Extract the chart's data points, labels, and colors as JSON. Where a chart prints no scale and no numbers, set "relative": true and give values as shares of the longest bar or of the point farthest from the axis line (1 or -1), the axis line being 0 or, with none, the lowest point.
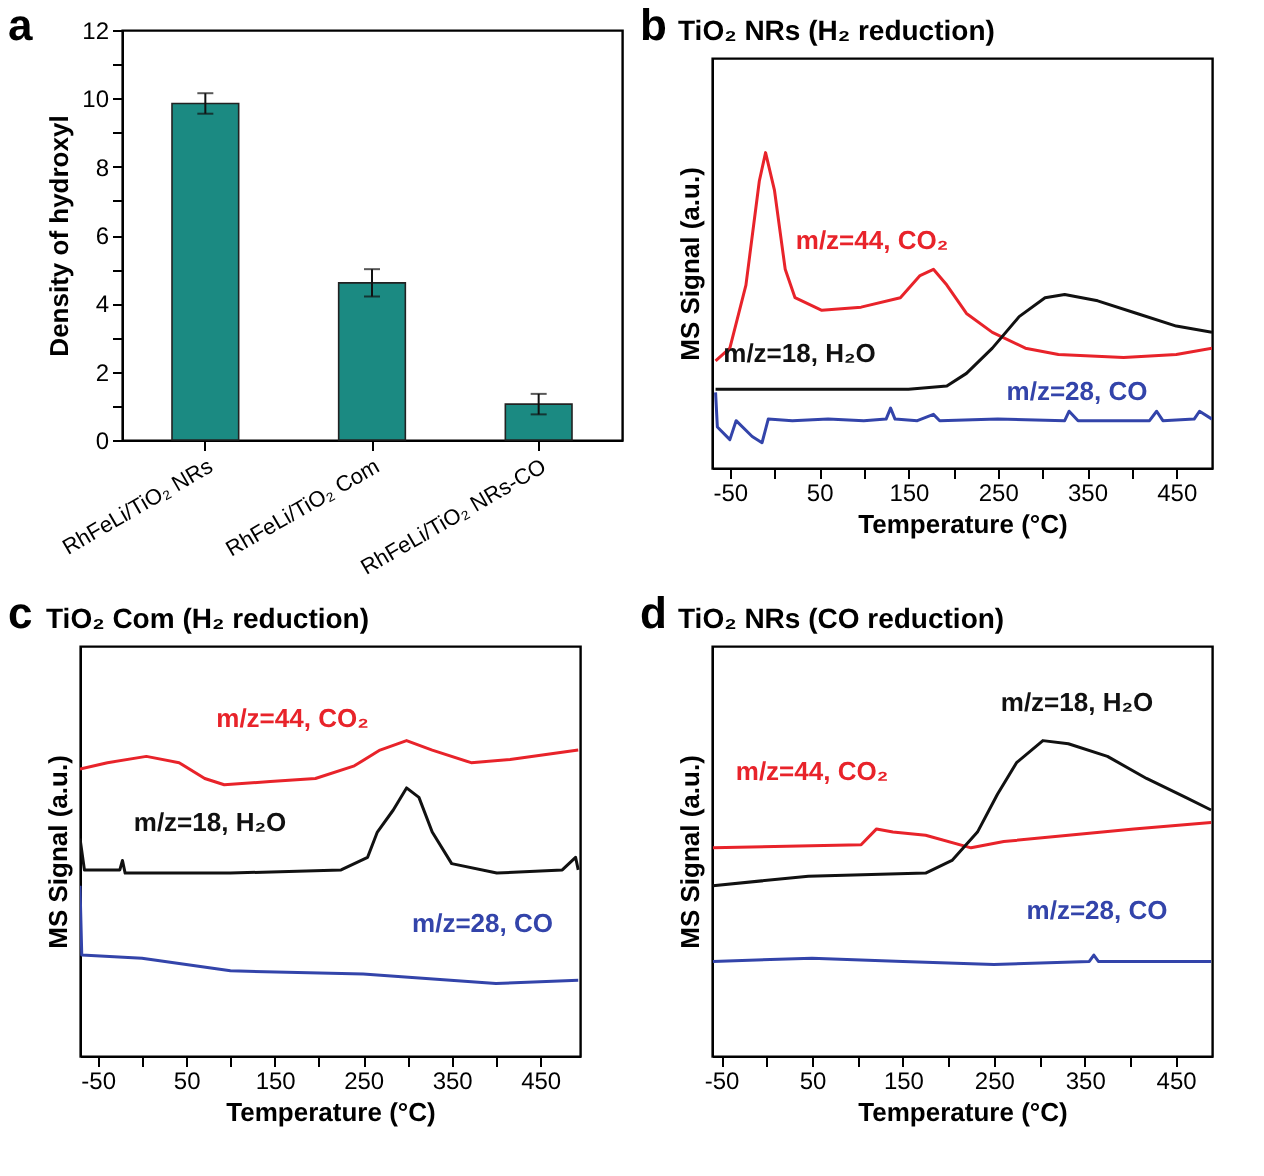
{
  "chart_data": [
    {
      "type": "bar",
      "ylabel": "Density of hydroxyl",
      "annotations": [
        "a"
      ],
      "categories": [
        "RhFeLi/TiO₂ NRs",
        "RhFeLi/TiO₂ Com",
        "RhFeLi/TiO₂ NRs-CO"
      ],
      "values": [
        9.85,
        4.6,
        1.05
      ],
      "errors": [
        0.3,
        0.4,
        0.3
      ],
      "color": "#1b8a82",
      "ylim": [
        0,
        12
      ],
      "yticks": [
        0,
        {
          "value": 1,
          "label": null
        },
        2,
        {
          "value": 3,
          "label": null
        },
        4,
        {
          "value": 5,
          "label": null
        },
        6,
        {
          "value": 7,
          "label": null
        },
        8,
        {
          "value": 9,
          "label": null
        },
        10,
        {
          "value": 11,
          "label": null
        },
        12
      ]
    },
    {
      "type": "line",
      "title": "TiO₂ NRs (H₂ reduction)",
      "xlabel": "Temperature (°C)",
      "ylabel": "MS Signal (a.u.)",
      "relative": true,
      "annotations": [
        "b"
      ],
      "xlim": [
        -70,
        490
      ],
      "xticks": [
        -50,
        {
          "value": 0,
          "label": null
        },
        50,
        {
          "value": 100,
          "label": null
        },
        150,
        {
          "value": 200,
          "label": null
        },
        250,
        {
          "value": 300,
          "label": null
        },
        350,
        {
          "value": 400,
          "label": null
        },
        450
      ],
      "series": [
        {
          "name": "m/z=44, CO₂",
          "color": "#e8232a",
          "x": [
            -66,
            -50,
            -32,
            -17,
            -10,
            0,
            12,
            23,
            53,
            97,
            141,
            163,
            178,
            193,
            215,
            244,
            281,
            318,
            391,
            450,
            490
          ],
          "values": [
            0.34,
            0.38,
            0.58,
            0.91,
            1.0,
            0.88,
            0.63,
            0.54,
            0.5,
            0.51,
            0.54,
            0.61,
            0.63,
            0.58,
            0.49,
            0.43,
            0.38,
            0.36,
            0.35,
            0.36,
            0.38
          ]
        },
        {
          "name": "m/z=18, H₂O",
          "color": "#111111",
          "x": [
            -66,
            50,
            150,
            193,
            215,
            244,
            274,
            303,
            325,
            362,
            406,
            450,
            490
          ],
          "values": [
            0.25,
            0.25,
            0.25,
            0.26,
            0.3,
            0.38,
            0.48,
            0.54,
            0.55,
            0.53,
            0.49,
            0.45,
            0.43
          ]
        },
        {
          "name": "m/z=28, CO",
          "color": "#3344aa",
          "x": [
            -66,
            -64,
            -50,
            -43,
            -25,
            -14,
            -7,
            20,
            60,
            100,
            125,
            130,
            135,
            160,
            178,
            185,
            250,
            325,
            330,
            340,
            420,
            428,
            435,
            470,
            476,
            490
          ],
          "values": [
            0.24,
            0.13,
            0.09,
            0.15,
            0.1,
            0.08,
            0.155,
            0.15,
            0.155,
            0.15,
            0.155,
            0.19,
            0.155,
            0.15,
            0.17,
            0.15,
            0.155,
            0.15,
            0.18,
            0.15,
            0.15,
            0.18,
            0.15,
            0.155,
            0.18,
            0.155
          ]
        }
      ]
    },
    {
      "type": "line",
      "title": "TiO₂ Com (H₂ reduction)",
      "xlabel": "Temperature (°C)",
      "ylabel": "MS Signal (a.u.)",
      "relative": true,
      "annotations": [
        "c"
      ],
      "xlim": [
        -70,
        495
      ],
      "xticks": [
        -50,
        {
          "value": 0,
          "label": null
        },
        50,
        {
          "value": 100,
          "label": null
        },
        150,
        {
          "value": 200,
          "label": null
        },
        250,
        {
          "value": 300,
          "label": null
        },
        350,
        {
          "value": 400,
          "label": null
        },
        450
      ],
      "series": [
        {
          "name": "m/z=44, CO₂",
          "color": "#e8232a",
          "x": [
            -70,
            -39,
            5,
            42,
            71,
            93,
            145,
            196,
            240,
            269,
            299,
            328,
            372,
            416,
            493
          ],
          "values": [
            0.91,
            0.93,
            0.95,
            0.93,
            0.88,
            0.86,
            0.87,
            0.88,
            0.92,
            0.97,
            1.0,
            0.97,
            0.93,
            0.94,
            0.97
          ]
        },
        {
          "name": "m/z=18, H₂O",
          "color": "#111111",
          "x": [
            -70,
            -65,
            -25,
            -22,
            -19,
            100,
            225,
            255,
            266,
            284,
            299,
            313,
            328,
            350,
            401,
            475,
            490,
            493
          ],
          "values": [
            0.69,
            0.59,
            0.59,
            0.62,
            0.58,
            0.58,
            0.59,
            0.63,
            0.71,
            0.78,
            0.85,
            0.82,
            0.71,
            0.61,
            0.58,
            0.59,
            0.63,
            0.59
          ]
        },
        {
          "name": "m/z=28, CO",
          "color": "#3344aa",
          "x": [
            -70,
            -68,
            0,
            100,
            250,
            400,
            493
          ],
          "values": [
            0.54,
            0.32,
            0.31,
            0.27,
            0.26,
            0.23,
            0.24
          ]
        }
      ]
    },
    {
      "type": "line",
      "title": "TiO₂ NRs (CO reduction)",
      "xlabel": "Temperature (°C)",
      "ylabel": "MS Signal (a.u.)",
      "relative": true,
      "annotations": [
        "d"
      ],
      "xlim": [
        -60,
        490
      ],
      "xticks": [
        -50,
        {
          "value": 0,
          "label": null
        },
        50,
        {
          "value": 100,
          "label": null
        },
        150,
        {
          "value": 200,
          "label": null
        },
        250,
        {
          "value": 300,
          "label": null
        },
        350,
        {
          "value": 400,
          "label": null
        },
        450
      ],
      "series": [
        {
          "name": "m/z=44, CO₂",
          "color": "#e8232a",
          "x": [
            -59,
            104,
            121,
            139,
            175,
            225,
            261,
            332,
            404,
            489
          ],
          "values": [
            0.66,
            0.67,
            0.72,
            0.71,
            0.7,
            0.66,
            0.68,
            0.7,
            0.72,
            0.74
          ]
        },
        {
          "name": "m/z=18, H₂O",
          "color": "#111111",
          "x": [
            -59,
            46,
            175,
            204,
            232,
            254,
            275,
            304,
            332,
            375,
            418,
            461,
            489
          ],
          "values": [
            0.54,
            0.57,
            0.58,
            0.62,
            0.71,
            0.83,
            0.93,
            1.0,
            0.99,
            0.95,
            0.88,
            0.82,
            0.78
          ]
        },
        {
          "name": "m/z=28, CO",
          "color": "#3344aa",
          "x": [
            -59,
            50,
            150,
            250,
            355,
            360,
            365,
            489
          ],
          "values": [
            0.3,
            0.31,
            0.3,
            0.29,
            0.3,
            0.32,
            0.3,
            0.3
          ]
        }
      ]
    }
  ]
}
